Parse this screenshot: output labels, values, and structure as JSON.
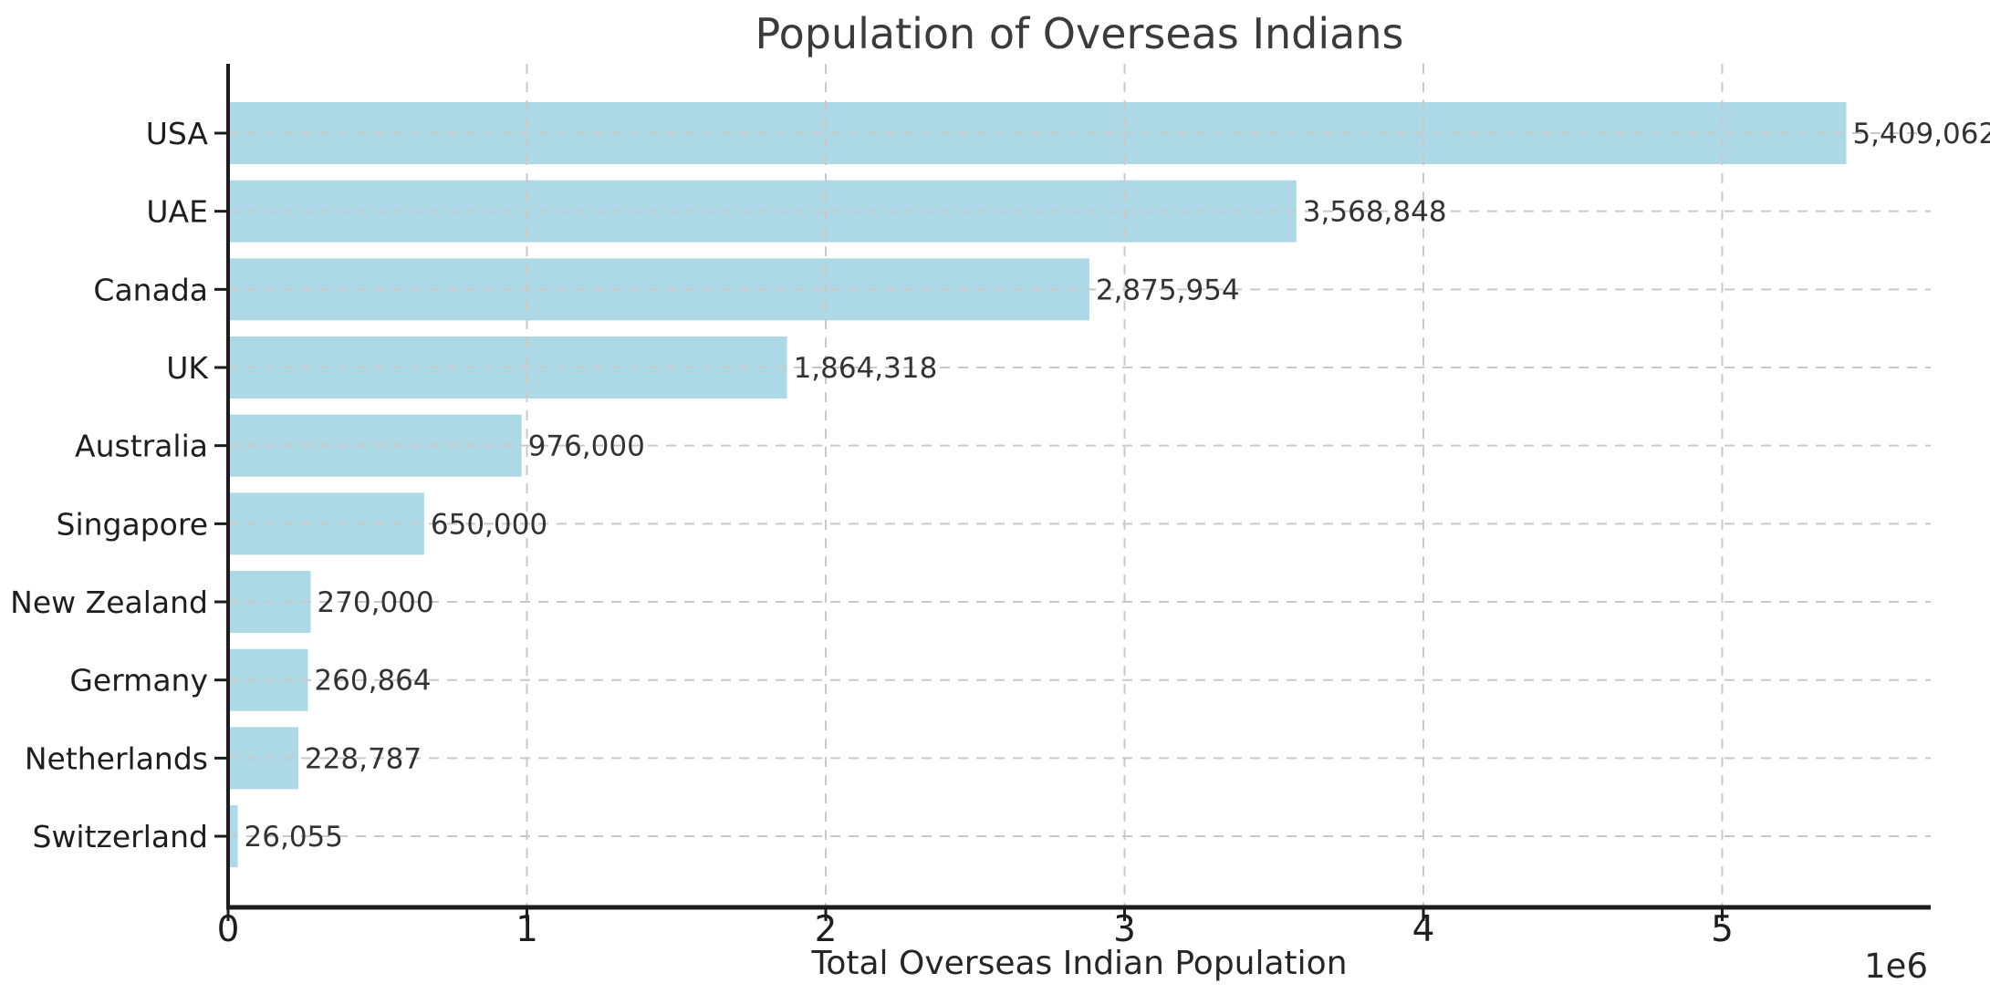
{
  "chart_data": {
    "type": "bar",
    "orientation": "horizontal",
    "title": "Population of Overseas Indians",
    "xlabel": "Total Overseas Indian Population",
    "ylabel": "",
    "categories": [
      "USA",
      "UAE",
      "Canada",
      "UK",
      "Australia",
      "Singapore",
      "New Zealand",
      "Germany",
      "Netherlands",
      "Switzerland"
    ],
    "values": [
      5409062,
      3568848,
      2875954,
      1864318,
      976000,
      650000,
      270000,
      260864,
      228787,
      26055
    ],
    "value_labels": [
      "5,409,062",
      "3,568,848",
      "2,875,954",
      "1,864,318",
      "976,000",
      "650,000",
      "270,000",
      "260,864",
      "228,787",
      "26,055"
    ],
    "x_ticks": [
      0,
      1,
      2,
      3,
      4,
      5
    ],
    "x_tick_labels": [
      "0",
      "1",
      "2",
      "3",
      "4",
      "5"
    ],
    "x_offset_text": "1e6",
    "xlim": [
      0,
      5700000
    ],
    "grid": "dashed",
    "legend": "none",
    "bar_color": "#ADD8E6",
    "grid_color": "#c9c9c9",
    "spine_color": "#1c1c1c",
    "text_color": "#262626"
  }
}
